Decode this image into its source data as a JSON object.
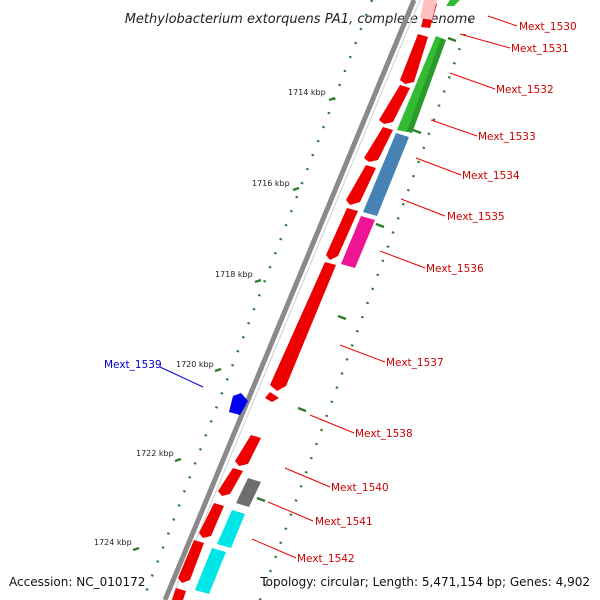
{
  "title": "Methylobacterium extorquens PA1, complete genome",
  "footer": {
    "accession": "Accession: NC_010172",
    "topology": "Topology: circular; Length: 5,471,154 bp; Genes: 4,902"
  },
  "colors": {
    "backbone": "#8a8a8a",
    "tick": "#2e7d2e",
    "forward_label": "#cc0000",
    "reverse_label": "#0000cc",
    "red_gene": "#ee0000",
    "green_gene": "#33bb33",
    "steelblue_gene": "#4682b4",
    "magenta_gene": "#ee1493",
    "cyan_gene": "#00e5e5",
    "gray_gene": "#6e6e6e",
    "pink_gene": "#ffc0c0",
    "blue_gene": "#0000ee"
  },
  "ticks": [
    {
      "label": "1714 kbp"
    },
    {
      "label": "1716 kbp"
    },
    {
      "label": "1718 kbp"
    },
    {
      "label": "1720 kbp"
    },
    {
      "label": "1722 kbp"
    },
    {
      "label": "1724 kbp"
    }
  ],
  "gene_labels": [
    {
      "text": "Mext_1530",
      "strand": "forward"
    },
    {
      "text": "Mext_1531",
      "strand": "forward"
    },
    {
      "text": "Mext_1532",
      "strand": "forward"
    },
    {
      "text": "Mext_1533",
      "strand": "forward"
    },
    {
      "text": "Mext_1534",
      "strand": "forward"
    },
    {
      "text": "Mext_1535",
      "strand": "forward"
    },
    {
      "text": "Mext_1536",
      "strand": "forward"
    },
    {
      "text": "Mext_1537",
      "strand": "forward"
    },
    {
      "text": "Mext_1538",
      "strand": "forward"
    },
    {
      "text": "Mext_1539",
      "strand": "reverse"
    },
    {
      "text": "Mext_1540",
      "strand": "forward"
    },
    {
      "text": "Mext_1541",
      "strand": "forward"
    },
    {
      "text": "Mext_1542",
      "strand": "forward"
    }
  ]
}
